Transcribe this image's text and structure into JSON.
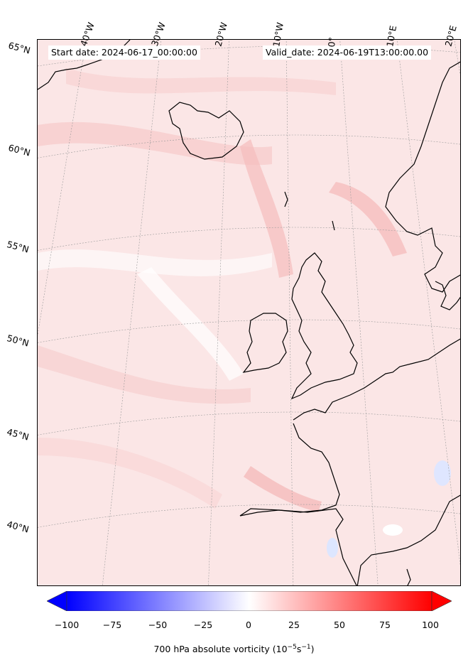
{
  "info": {
    "start_date": "Start date: 2024-06-17_00:00:00",
    "valid_date": "Valid_date: 2024-06-19T13:00:00.00"
  },
  "lon_labels": [
    "40°W",
    "30°W",
    "20°W",
    "10°W",
    "0°",
    "10°E",
    "20°E"
  ],
  "lat_labels": [
    "65°N",
    "60°N",
    "55°N",
    "50°N",
    "45°N",
    "40°N"
  ],
  "colorbar": {
    "ticks": [
      "−100",
      "−75",
      "−50",
      "−25",
      "0",
      "25",
      "50",
      "75",
      "100"
    ],
    "title_text": "700 hPa absolute vorticity (10",
    "title_exp1": "−5",
    "title_mid": "s",
    "title_exp2": "−1",
    "title_end": ")",
    "min": -100,
    "max": 100,
    "colors": {
      "neg": "#0000ff",
      "zero": "#ffffff",
      "pos": "#ff0000"
    }
  },
  "map": {
    "projection": "Lambert conformal",
    "region": "North Atlantic and Western Europe",
    "field": "700 hPa absolute vorticity",
    "colors": {
      "ocean_base": "#fbe6e6",
      "coastline": "#000000",
      "gridline": "#9a9a9a"
    }
  }
}
